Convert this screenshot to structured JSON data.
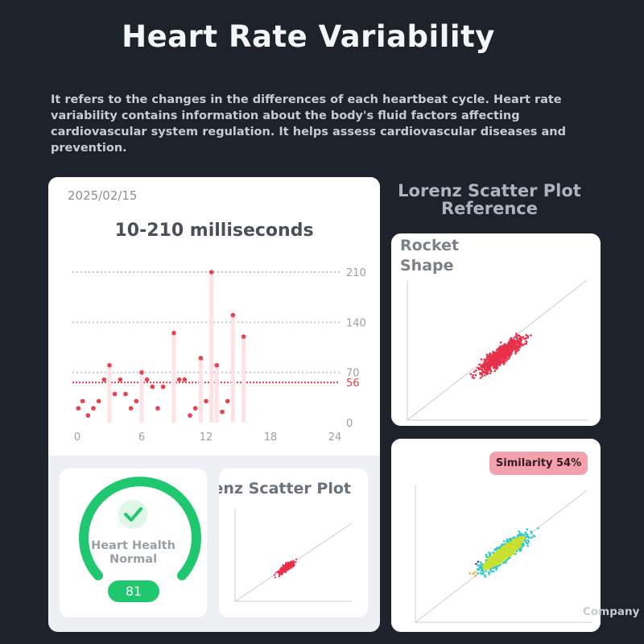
{
  "page": {
    "title": "Heart Rate Variability",
    "description": "It refers to the changes in the differences of each heartbeat cycle. Heart rate variability contains information about the body's fluid factors affecting cardiovascular system regulation. It helps assess cardiovascular diseases and prevention."
  },
  "main_card": {
    "date": "2025/02/15",
    "range": "10-210 milliseconds"
  },
  "chart_data": {
    "type": "scatter",
    "x_ticks": [
      "0",
      "6",
      "12",
      "18",
      "24"
    ],
    "y_ticks": [
      "210",
      "140",
      "70",
      "0"
    ],
    "xlim": [
      0,
      24
    ],
    "ylim": [
      0,
      210
    ],
    "reference_line": {
      "value": 56,
      "label": "56",
      "color": "#e0404a"
    },
    "grid": true,
    "points": [
      {
        "x": 0.1,
        "y": 20
      },
      {
        "x": 0.5,
        "y": 30
      },
      {
        "x": 1.0,
        "y": 10
      },
      {
        "x": 1.5,
        "y": 20
      },
      {
        "x": 2.0,
        "y": 30
      },
      {
        "x": 2.5,
        "y": 60
      },
      {
        "x": 3.0,
        "y": 80
      },
      {
        "x": 3.5,
        "y": 40
      },
      {
        "x": 4.0,
        "y": 60
      },
      {
        "x": 4.5,
        "y": 40
      },
      {
        "x": 5.0,
        "y": 20
      },
      {
        "x": 5.5,
        "y": 30
      },
      {
        "x": 6.0,
        "y": 70
      },
      {
        "x": 6.5,
        "y": 60
      },
      {
        "x": 7.0,
        "y": 50
      },
      {
        "x": 7.5,
        "y": 20
      },
      {
        "x": 8.0,
        "y": 50
      },
      {
        "x": 9.0,
        "y": 125
      },
      {
        "x": 9.5,
        "y": 60
      },
      {
        "x": 10.0,
        "y": 60
      },
      {
        "x": 10.5,
        "y": 10
      },
      {
        "x": 11.0,
        "y": 20
      },
      {
        "x": 11.5,
        "y": 90
      },
      {
        "x": 12.0,
        "y": 30
      },
      {
        "x": 12.5,
        "y": 210
      },
      {
        "x": 13.0,
        "y": 80
      },
      {
        "x": 13.5,
        "y": 15
      },
      {
        "x": 14.0,
        "y": 30
      },
      {
        "x": 14.5,
        "y": 150
      },
      {
        "x": 15.5,
        "y": 120
      }
    ]
  },
  "health": {
    "label_line1": "Heart Health",
    "label_line2": "Normal",
    "score": "81",
    "color": "#1fc76e"
  },
  "lorenz": {
    "title": "Lorenz Scatter Plot",
    "color": "#e0404a"
  },
  "reference": {
    "title_line1": "Lorenz Scatter Plot",
    "title_line2": "Reference",
    "rocket_line1": "Rocket",
    "rocket_line2": "Shape"
  },
  "similarity": {
    "label": "Similarity 54%"
  },
  "footer": {
    "company": "Company"
  }
}
